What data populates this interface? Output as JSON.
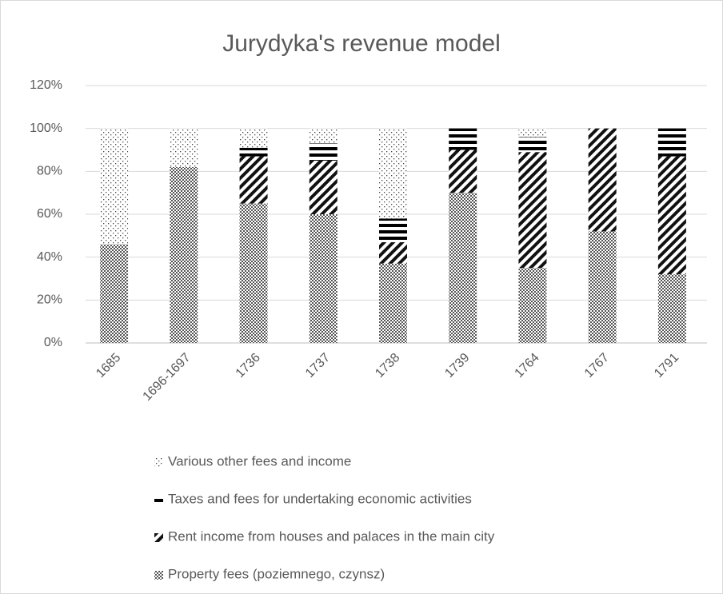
{
  "chart_data": {
    "type": "stacked_bar",
    "title": "Jurydyka's revenue model",
    "categories": [
      "1685",
      "1696-1697",
      "1736",
      "1737",
      "1738",
      "1739",
      "1764",
      "1767",
      "1791"
    ],
    "series": [
      {
        "name": "Property fees (poziemnego, czynsz)",
        "values": [
          46,
          82,
          65,
          60,
          37,
          70,
          35,
          52,
          32
        ]
      },
      {
        "name": "Rent income from houses and palaces in the main city",
        "values": [
          0,
          0,
          22,
          25,
          10,
          20,
          54,
          48,
          55
        ]
      },
      {
        "name": "Taxes and fees for undertaking economic activities",
        "values": [
          0,
          0,
          4,
          8,
          11,
          10,
          7,
          0,
          13
        ]
      },
      {
        "name": "Various other fees and income",
        "values": [
          54,
          18,
          9,
          7,
          42,
          0,
          4,
          0,
          0
        ]
      }
    ],
    "ylim": [
      0,
      120
    ],
    "yticks": [
      {
        "value": 0,
        "label": "0%"
      },
      {
        "value": 20,
        "label": "20%"
      },
      {
        "value": 40,
        "label": "40%"
      },
      {
        "value": 60,
        "label": "60%"
      },
      {
        "value": 80,
        "label": "80%"
      },
      {
        "value": 100,
        "label": "100%"
      },
      {
        "value": 120,
        "label": "120%"
      }
    ],
    "grid": true
  }
}
